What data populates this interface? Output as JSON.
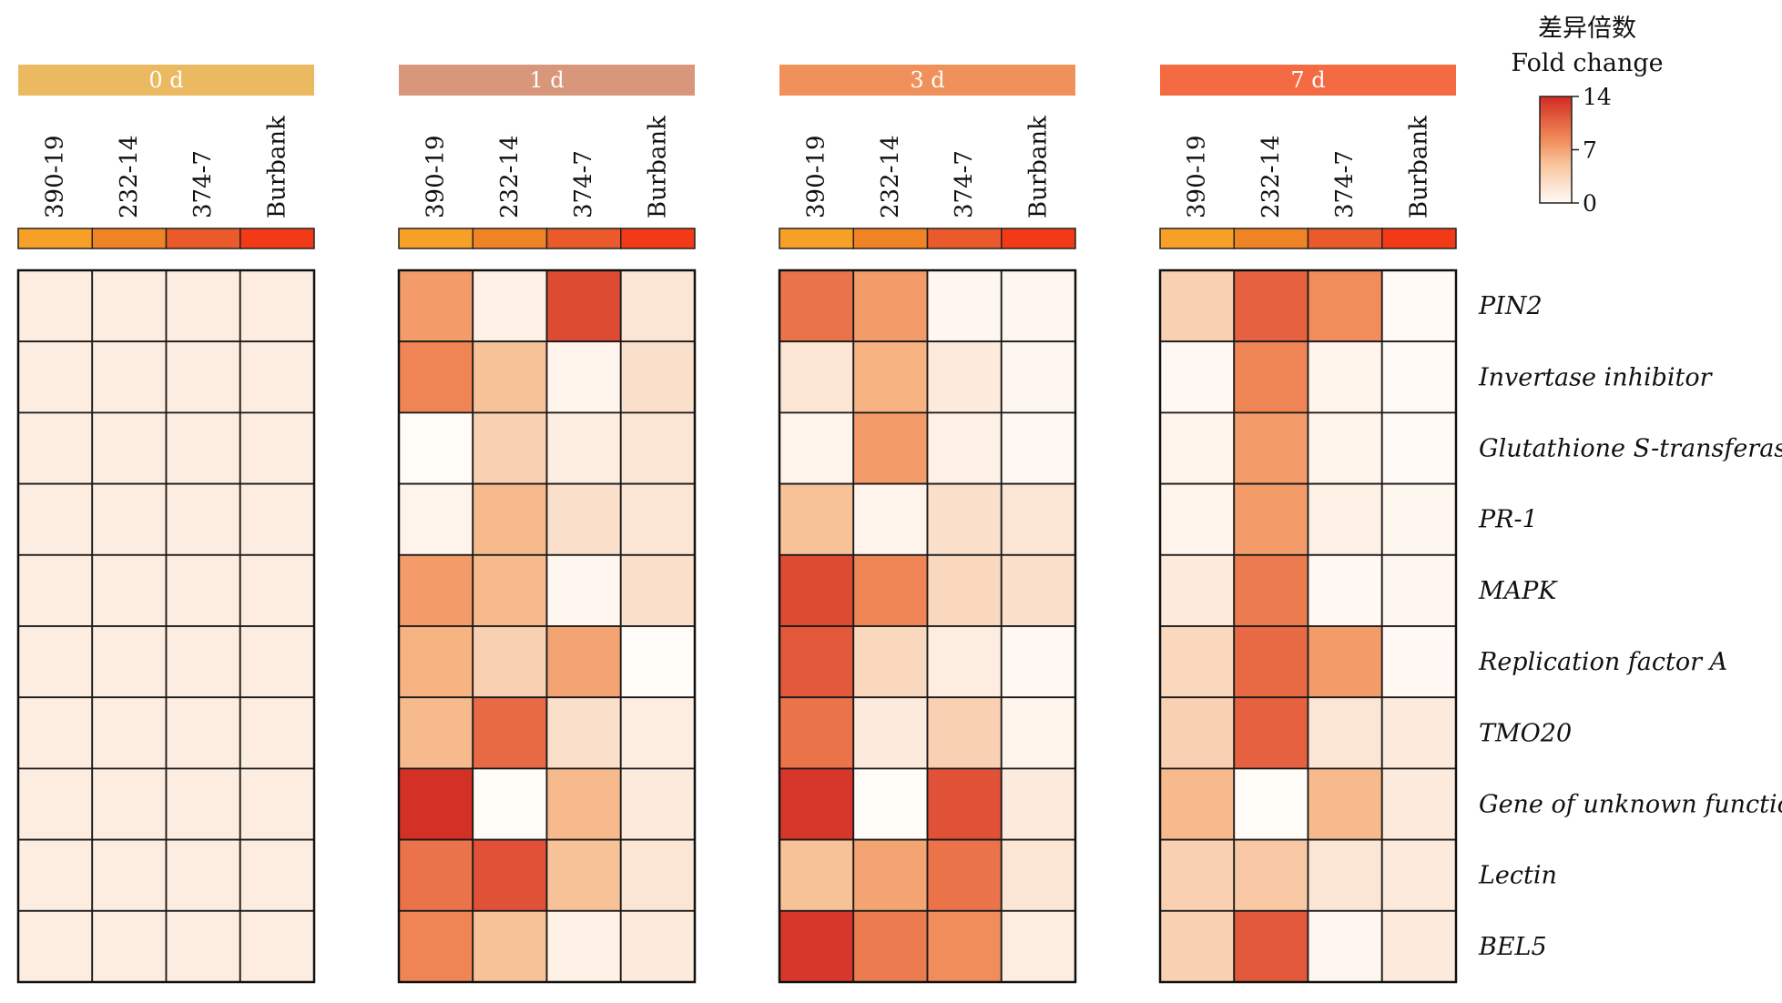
{
  "chart_data": {
    "type": "heatmap",
    "legend": {
      "title_cn": "差异倍数",
      "title_en": "Fold change",
      "ticks": [
        14,
        7,
        0
      ],
      "min": 0,
      "max": 14,
      "placement": "top-right"
    },
    "columns": [
      "390-19",
      "232-14",
      "374-7",
      "Burbank"
    ],
    "column_colors": [
      "#f7a028",
      "#f08424",
      "#ea5a2b",
      "#f23a17"
    ],
    "rows": [
      "PIN2",
      "Invertase inhibitor",
      "Glutathione S-transferase",
      "PR-1",
      "MAPK",
      "Replication factor A",
      "TMO20",
      "Gene of unknown function",
      "Lectin",
      "BEL5"
    ],
    "panels": [
      {
        "label": "0 d",
        "header_color": "#ebba60",
        "values": [
          [
            1,
            1,
            1,
            1
          ],
          [
            1,
            1,
            1,
            1
          ],
          [
            1,
            1,
            1,
            1
          ],
          [
            1,
            1,
            1,
            1
          ],
          [
            1,
            1,
            1,
            1
          ],
          [
            1,
            1,
            1,
            1
          ],
          [
            1,
            1,
            1,
            1
          ],
          [
            1,
            1,
            1,
            1
          ],
          [
            1,
            1,
            1,
            1
          ],
          [
            1,
            1,
            1,
            1
          ]
        ]
      },
      {
        "label": "1 d",
        "header_color": "#d8967a",
        "values": [
          [
            6.5,
            0.8,
            11.5,
            1.5
          ],
          [
            8,
            4,
            0.5,
            2
          ],
          [
            0,
            3,
            1,
            1.5
          ],
          [
            0.5,
            4.5,
            2,
            1.5
          ],
          [
            6.5,
            4.5,
            0.3,
            2
          ],
          [
            5,
            3,
            6,
            0
          ],
          [
            4.5,
            9.5,
            2,
            1
          ],
          [
            13.5,
            0,
            4.5,
            1.2
          ],
          [
            9,
            11,
            4,
            1.5
          ],
          [
            8,
            4,
            0.8,
            1.2
          ]
        ]
      },
      {
        "label": "3 d",
        "header_color": "#f0905a",
        "values": [
          [
            9,
            6.5,
            0.3,
            0.3
          ],
          [
            1.5,
            5,
            1.2,
            0.3
          ],
          [
            0.5,
            6.5,
            0.8,
            0.2
          ],
          [
            4,
            0.5,
            2,
            1.5
          ],
          [
            11.5,
            8,
            2.5,
            2
          ],
          [
            10.5,
            2.5,
            1,
            0.2
          ],
          [
            9,
            1.2,
            3,
            0.5
          ],
          [
            13,
            0,
            11,
            1.2
          ],
          [
            4,
            6,
            9,
            1.5
          ],
          [
            13,
            8.5,
            7.5,
            1
          ]
        ]
      },
      {
        "label": "7 d",
        "header_color": "#f46a42",
        "values": [
          [
            3,
            10,
            7.5,
            0.1
          ],
          [
            0.2,
            8,
            0.5,
            0.1
          ],
          [
            0.5,
            6.5,
            0.5,
            0.1
          ],
          [
            0.5,
            6.5,
            0.8,
            0.3
          ],
          [
            1.2,
            8.5,
            0.2,
            0.3
          ],
          [
            2.5,
            9.5,
            6.5,
            0.2
          ],
          [
            3,
            10,
            1.5,
            1.2
          ],
          [
            4.5,
            0,
            4.5,
            1.2
          ],
          [
            3,
            3.5,
            1.5,
            1.2
          ],
          [
            3,
            10.5,
            0.3,
            1.2
          ]
        ]
      }
    ]
  }
}
